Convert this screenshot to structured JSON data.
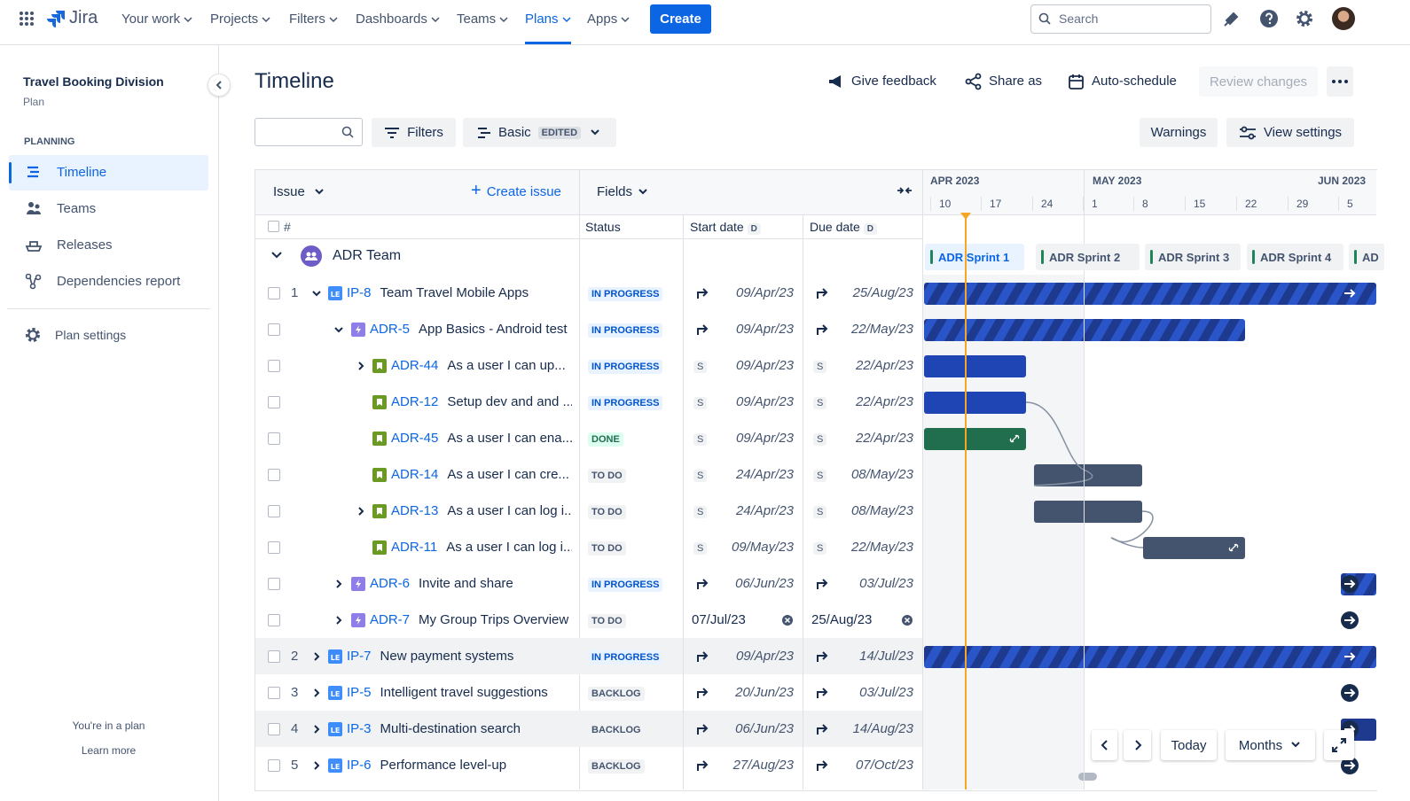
{
  "nav": {
    "logo": "Jira",
    "items": [
      "Your work",
      "Projects",
      "Filters",
      "Dashboards",
      "Teams",
      "Plans",
      "Apps"
    ],
    "create": "Create",
    "search": "Search"
  },
  "sidebar": {
    "plan_name": "Travel Booking Division",
    "plan_type": "Plan",
    "section": "PLANNING",
    "items": [
      "Timeline",
      "Teams",
      "Releases",
      "Dependencies report"
    ],
    "settings": "Plan settings",
    "footer": "You're in a plan",
    "learn_more": "Learn more"
  },
  "header": {
    "title": "Timeline",
    "actions": [
      "Give feedback",
      "Share as",
      "Auto-schedule",
      "Review changes"
    ]
  },
  "toolbar": {
    "filters": "Filters",
    "view": "Basic",
    "edited": "EDITED",
    "warnings": "Warnings",
    "view_settings": "View settings"
  },
  "table": {
    "issue_header": "Issue",
    "create_issue": "Create issue",
    "fields": "Fields",
    "columns": [
      "#",
      "Status",
      "Start date",
      "Due date"
    ],
    "date_badge": "D",
    "group": "ADR Team",
    "rows": [
      {
        "num": "1",
        "key": "IP-8",
        "summary": "Team Travel Mobile Apps",
        "status": "IN PROGRESS",
        "start": "09/Apr/23",
        "due": "25/Aug/23"
      },
      {
        "key": "ADR-5",
        "summary": "App Basics - Android test",
        "status": "IN PROGRESS",
        "start": "09/Apr/23",
        "due": "22/May/23"
      },
      {
        "key": "ADR-44",
        "summary": "As a user I can up...",
        "status": "IN PROGRESS",
        "start_badge": "S",
        "start": "09/Apr/23",
        "due_badge": "S",
        "due": "22/Apr/23"
      },
      {
        "key": "ADR-12",
        "summary": "Setup dev and and ...",
        "status": "IN PROGRESS",
        "start_badge": "S",
        "start": "09/Apr/23",
        "due_badge": "S",
        "due": "22/Apr/23"
      },
      {
        "key": "ADR-45",
        "summary": "As a user I can ena...",
        "status": "DONE",
        "start_badge": "S",
        "start": "09/Apr/23",
        "due_badge": "S",
        "due": "22/Apr/23"
      },
      {
        "key": "ADR-14",
        "summary": "As a user I can cre...",
        "status": "TO DO",
        "start_badge": "S",
        "start": "24/Apr/23",
        "due_badge": "S",
        "due": "08/May/23"
      },
      {
        "key": "ADR-13",
        "summary": "As a user I can log i...",
        "status": "TO DO",
        "start_badge": "S",
        "start": "24/Apr/23",
        "due_badge": "S",
        "due": "08/May/23"
      },
      {
        "key": "ADR-11",
        "summary": "As a user I can log i...",
        "status": "TO DO",
        "start_badge": "S",
        "start": "09/May/23",
        "due_badge": "S",
        "due": "22/May/23"
      },
      {
        "key": "ADR-6",
        "summary": "Invite and share",
        "status": "IN PROGRESS",
        "start": "06/Jun/23",
        "due": "03/Jul/23"
      },
      {
        "key": "ADR-7",
        "summary": "My Group Trips Overview",
        "status": "TO DO",
        "start": "07/Jul/23",
        "due": "25/Aug/23"
      },
      {
        "num": "2",
        "key": "IP-7",
        "summary": "New payment systems",
        "status": "IN PROGRESS",
        "start": "09/Apr/23",
        "due": "14/Jul/23"
      },
      {
        "num": "3",
        "key": "IP-5",
        "summary": "Intelligent travel suggestions",
        "status": "BACKLOG",
        "start": "20/Jun/23",
        "due": "03/Jul/23"
      },
      {
        "num": "4",
        "key": "IP-3",
        "summary": "Multi-destination search",
        "status": "BACKLOG",
        "start": "06/Jun/23",
        "due": "14/Aug/23"
      },
      {
        "num": "5",
        "key": "IP-6",
        "summary": "Performance level-up",
        "status": "BACKLOG",
        "start": "27/Aug/23",
        "due": "07/Oct/23"
      }
    ]
  },
  "timeline": {
    "months": [
      "APR 2023",
      "MAY 2023",
      "JUN 2023"
    ],
    "weeks": [
      "10",
      "17",
      "24",
      "1",
      "8",
      "15",
      "22",
      "29",
      "5"
    ],
    "sprints": [
      "ADR Sprint 1",
      "ADR Sprint 2",
      "ADR Sprint 3",
      "ADR Sprint 4",
      "AD"
    ]
  },
  "controls": {
    "today": "Today",
    "zoom": "Months"
  }
}
